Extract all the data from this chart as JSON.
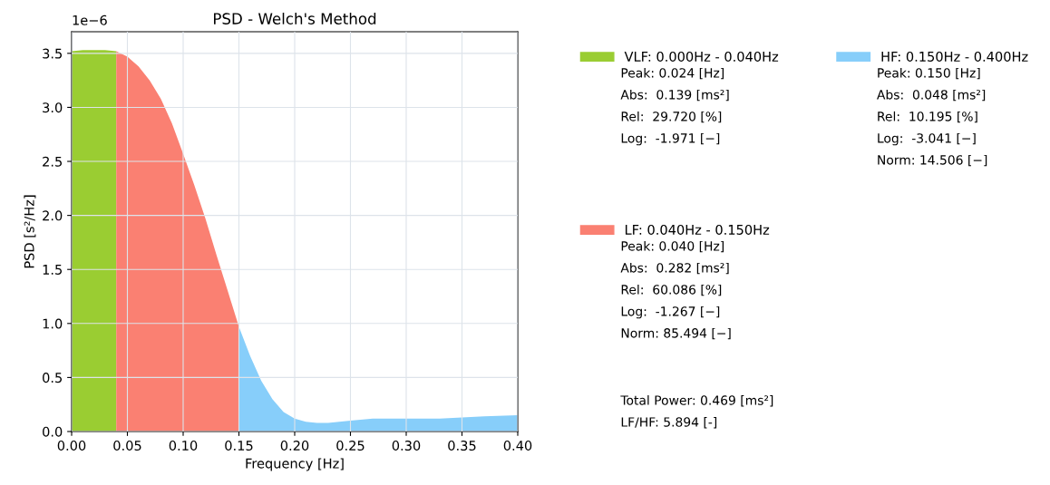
{
  "chart_data": {
    "type": "area",
    "title": "PSD - Welch's Method",
    "xlabel": "Frequency [Hz]",
    "ylabel": "PSD [s²/Hz]",
    "xlim": [
      0,
      0.4
    ],
    "xticks": [
      {
        "value": 0,
        "label": "0.00"
      },
      {
        "value": 0.05,
        "label": "0.05"
      },
      {
        "value": 0.1,
        "label": "0.10"
      },
      {
        "value": 0.15,
        "label": "0.15"
      },
      {
        "value": 0.2,
        "label": "0.20"
      },
      {
        "value": 0.25,
        "label": "0.25"
      },
      {
        "value": 0.3,
        "label": "0.30"
      },
      {
        "value": 0.35,
        "label": "0.35"
      },
      {
        "value": 0.4,
        "label": "0.40"
      }
    ],
    "ylim": [
      0,
      3.7
    ],
    "yticks": [
      {
        "value": 0,
        "label": "0.0"
      },
      {
        "value": 0.5,
        "label": "0.5"
      },
      {
        "value": 1,
        "label": "1.0"
      },
      {
        "value": 1.5,
        "label": "1.5"
      },
      {
        "value": 2,
        "label": "2.0"
      },
      {
        "value": 2.5,
        "label": "2.5"
      },
      {
        "value": 3,
        "label": "3.0"
      },
      {
        "value": 3.5,
        "label": "3.5"
      }
    ],
    "grid": true,
    "legend": "right",
    "series": [
      {
        "name": "VLF: 0.000Hz - 0.040Hz",
        "color": "#9acd32",
        "x": [
          0,
          0.01,
          0.02,
          0.03,
          0.04
        ],
        "values": [
          3.52,
          3.53,
          3.53,
          3.53,
          3.52
        ]
      },
      {
        "name": "LF: 0.040Hz - 0.150Hz",
        "color": "#fa8072",
        "x": [
          0.04,
          0.05,
          0.06,
          0.07,
          0.08,
          0.09,
          0.1,
          0.11,
          0.12,
          0.13,
          0.14,
          0.15
        ],
        "values": [
          3.52,
          3.47,
          3.38,
          3.25,
          3.08,
          2.85,
          2.57,
          2.28,
          1.97,
          1.63,
          1.3,
          0.97
        ]
      },
      {
        "name": "HF: 0.150Hz - 0.400Hz",
        "color": "#87cefa",
        "x": [
          0.15,
          0.16,
          0.17,
          0.18,
          0.19,
          0.2,
          0.21,
          0.22,
          0.23,
          0.25,
          0.27,
          0.3,
          0.33,
          0.35,
          0.37,
          0.4
        ],
        "values": [
          0.97,
          0.7,
          0.47,
          0.3,
          0.18,
          0.12,
          0.09,
          0.08,
          0.08,
          0.1,
          0.12,
          0.12,
          0.12,
          0.13,
          0.14,
          0.15
        ]
      }
    ],
    "annotations": [
      "1e−6",
      "Peak: 0.024 [Hz]\nAbs:  0.139 [ms²]\nRel:  29.720 [%]\nLog:  -1.971 [−]",
      "Peak: 0.040 [Hz]\nAbs:  0.282 [ms²]\nRel:  60.086 [%]\nLog:  -1.267 [−]\nNorm: 85.494 [−]",
      "Peak: 0.150 [Hz]\nAbs:  0.048 [ms²]\nRel:  10.195 [%]\nLog:  -3.041 [−]\nNorm: 14.506 [−]",
      "Total Power: 0.469 [ms²]\nLF/HF: 5.894 [-]"
    ]
  }
}
